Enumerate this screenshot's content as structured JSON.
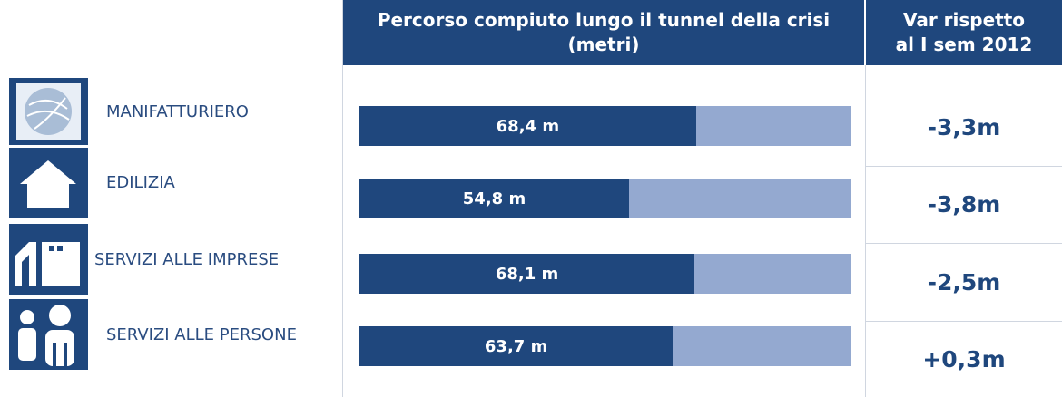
{
  "chart_data": {
    "type": "hbar",
    "title": "Percorso compiuto lungo il tunnel della crisi (metri)",
    "categories": [
      "MANIFATTURIERO",
      "EDILIZIA",
      "SERVIZI ALLE IMPRESE",
      "SERVIZI ALLE PERSONE"
    ],
    "values": [
      68.4,
      54.8,
      68.1,
      63.7
    ],
    "value_labels": [
      "68,4 m",
      "54,8 m",
      "68,1 m",
      "63,7 m"
    ],
    "color": "#1f477d",
    "track_color": "#94a9d0",
    "xlim": [
      0,
      100
    ],
    "change": {
      "header": "Var rispetto al I sem 2012",
      "values": [
        -3.3,
        -3.8,
        -2.5,
        0.3
      ],
      "value_labels": [
        "-3,3m",
        "-3,8m",
        "-2,5m",
        "+0,3m"
      ]
    }
  }
}
